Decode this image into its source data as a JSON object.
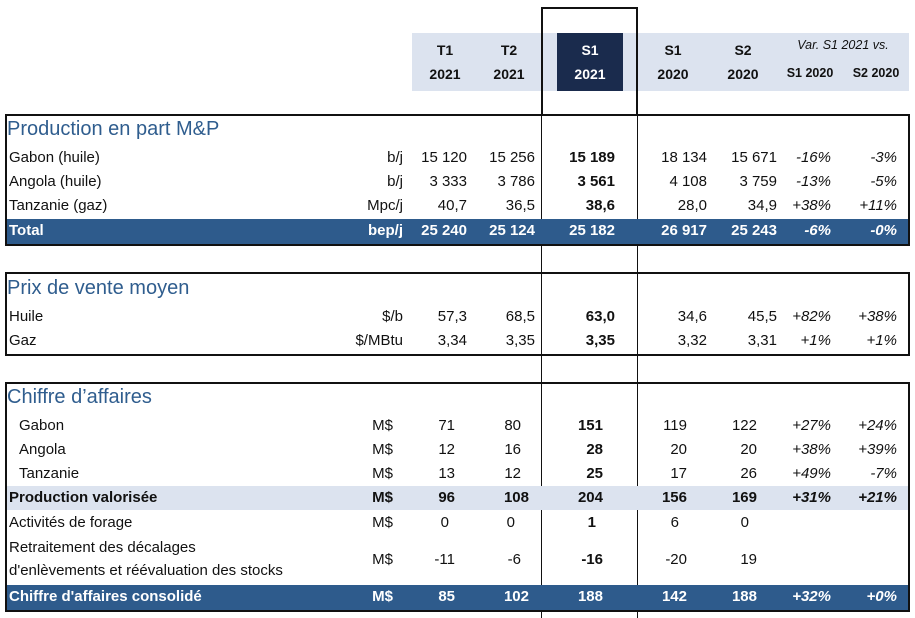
{
  "header": {
    "cols": [
      {
        "l1": "T1",
        "l2": "2021"
      },
      {
        "l1": "T2",
        "l2": "2021"
      },
      {
        "l1": "S1",
        "l2": "2021"
      },
      {
        "l1": "S1",
        "l2": "2020"
      },
      {
        "l1": "S2",
        "l2": "2020"
      }
    ],
    "var_title": "Var. S1 2021 vs.",
    "var_cols": [
      "S1 2020",
      "S2 2020"
    ]
  },
  "production": {
    "title": "Production en part M&P",
    "rows": [
      {
        "label": "Gabon (huile)",
        "unit": "b/j",
        "t1": "15 120",
        "t2": "15 256",
        "s1_21": "15 189",
        "s1_20": "18 134",
        "s2_20": "15 671",
        "v1": "-16%",
        "v2": "-3%"
      },
      {
        "label": "Angola (huile)",
        "unit": "b/j",
        "t1": "3 333",
        "t2": "3 786",
        "s1_21": "3 561",
        "s1_20": "4 108",
        "s2_20": "3 759",
        "v1": "-13%",
        "v2": "-5%"
      },
      {
        "label": "Tanzanie (gaz)",
        "unit": "Mpc/j",
        "t1": "40,7",
        "t2": "36,5",
        "s1_21": "38,6",
        "s1_20": "28,0",
        "s2_20": "34,9",
        "v1": "+38%",
        "v2": "+11%"
      }
    ],
    "total": {
      "label": "Total",
      "unit": "bep/j",
      "t1": "25 240",
      "t2": "25 124",
      "s1_21": "25 182",
      "s1_20": "26 917",
      "s2_20": "25 243",
      "v1": "-6%",
      "v2": "-0%"
    }
  },
  "prices": {
    "title": "Prix de vente moyen",
    "rows": [
      {
        "label": "Huile",
        "unit": "$/b",
        "t1": "57,3",
        "t2": "68,5",
        "s1_21": "63,0",
        "s1_20": "34,6",
        "s2_20": "45,5",
        "v1": "+82%",
        "v2": "+38%"
      },
      {
        "label": "Gaz",
        "unit": "$/MBtu",
        "t1": "3,34",
        "t2": "3,35",
        "s1_21": "3,35",
        "s1_20": "3,32",
        "s2_20": "3,31",
        "v1": "+1%",
        "v2": "+1%"
      }
    ]
  },
  "revenue": {
    "title": "Chiffre d’affaires",
    "rows": [
      {
        "label": "Gabon",
        "unit": "M$",
        "t1": "71",
        "t2": "80",
        "s1_21": "151",
        "s1_20": "119",
        "s2_20": "122",
        "v1": "+27%",
        "v2": "+24%"
      },
      {
        "label": "Angola",
        "unit": "M$",
        "t1": "12",
        "t2": "16",
        "s1_21": "28",
        "s1_20": "20",
        "s2_20": "20",
        "v1": "+38%",
        "v2": "+39%"
      },
      {
        "label": "Tanzanie",
        "unit": "M$",
        "t1": "13",
        "t2": "12",
        "s1_21": "25",
        "s1_20": "17",
        "s2_20": "26",
        "v1": "+49%",
        "v2": "-7%"
      }
    ],
    "valorisee": {
      "label": "Production valorisée",
      "unit": "M$",
      "t1": "96",
      "t2": "108",
      "s1_21": "204",
      "s1_20": "156",
      "s2_20": "169",
      "v1": "+31%",
      "v2": "+21%"
    },
    "forage": {
      "label": "Activités de forage",
      "unit": "M$",
      "t1": "0",
      "t2": "0",
      "s1_21": "1",
      "s1_20": "6",
      "s2_20": "0"
    },
    "retraitement": {
      "label1": "Retraitement des décalages",
      "label2": "d'enlèvements et réévaluation des stocks",
      "unit": "M$",
      "t1": "-11",
      "t2": "-6",
      "s1_21": "-16",
      "s1_20": "-20",
      "s2_20": "19"
    },
    "consolide": {
      "label": "Chiffre d'affaires consolidé",
      "unit": "M$",
      "t1": "85",
      "t2": "102",
      "s1_21": "188",
      "s1_20": "142",
      "s2_20": "188",
      "v1": "+32%",
      "v2": "+0%"
    }
  }
}
